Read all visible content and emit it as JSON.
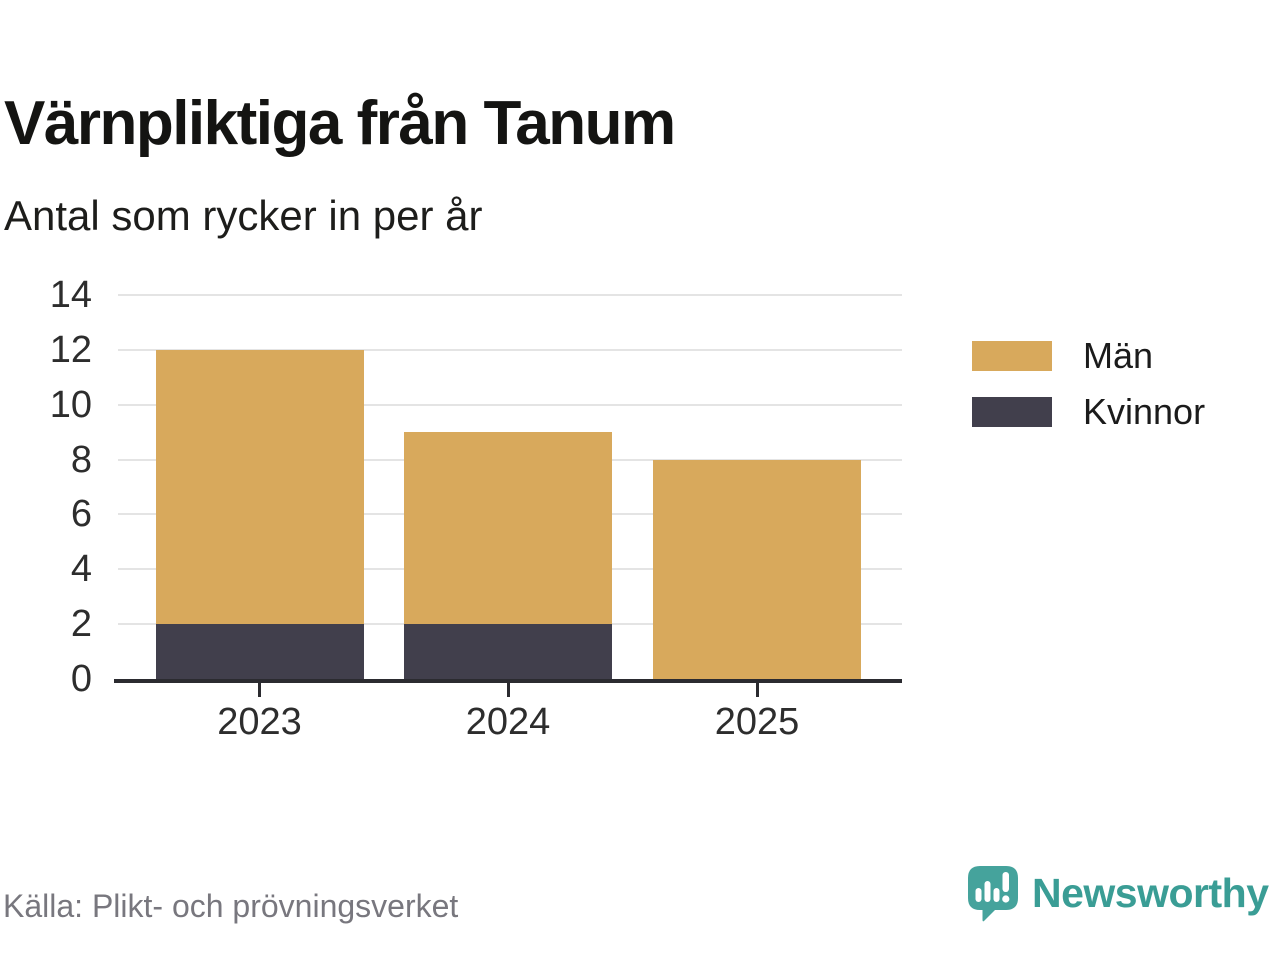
{
  "title": "Värnpliktiga från Tanum",
  "subtitle": "Antal som rycker in per år",
  "source": "Källa: Plikt- och prövningsverket",
  "branding": {
    "name": "Newsworthy",
    "icon": "newsworthy-logo-icon",
    "color": "#3a9d95"
  },
  "legend": [
    {
      "label": "Män",
      "color": "#d8a95c"
    },
    {
      "label": "Kvinnor",
      "color": "#413f4c"
    }
  ],
  "chart_data": {
    "type": "bar",
    "stacked": true,
    "title": "Värnpliktiga från Tanum",
    "subtitle": "Antal som rycker in per år",
    "categories": [
      "2023",
      "2024",
      "2025"
    ],
    "series": [
      {
        "name": "Kvinnor",
        "color": "#413f4c",
        "values": [
          2,
          2,
          0
        ]
      },
      {
        "name": "Män",
        "color": "#d8a95c",
        "values": [
          10,
          7,
          8
        ]
      }
    ],
    "totals": [
      12,
      9,
      8
    ],
    "xlabel": "",
    "ylabel": "",
    "ylim": [
      0,
      14
    ],
    "yticks": [
      0,
      2,
      4,
      6,
      8,
      10,
      12,
      14
    ],
    "grid": true,
    "legend_position": "right",
    "axis_color": "#2b2b30",
    "gridline_color": "#e4e4e4"
  }
}
